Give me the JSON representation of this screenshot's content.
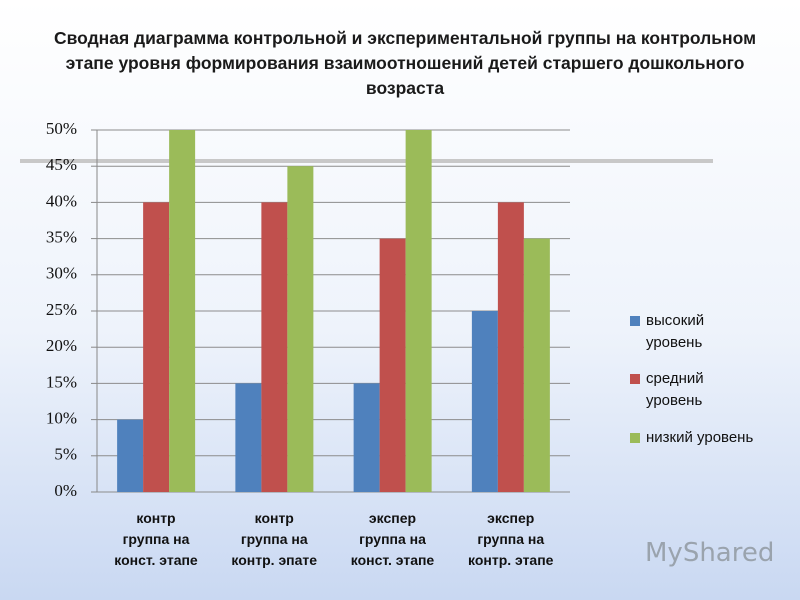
{
  "chart_data": {
    "type": "bar",
    "title": "Сводная диаграмма контрольной и экспериментальной группы на контрольном этапе уровня формирования взаимоотношений детей старшего дошкольного возраста",
    "categories": [
      "контр\nгруппа на\nконст. этапе",
      "контр\nгруппа на\nконтр. эпате",
      "экспер\nгруппа на\nконст. этапе",
      "экспер\nгруппа на\nконтр. этапе"
    ],
    "series": [
      {
        "name": "высокий уровень",
        "color": "#4f81bd",
        "values": [
          10,
          15,
          15,
          25
        ]
      },
      {
        "name": "средний уровень",
        "color": "#c0504d",
        "values": [
          40,
          40,
          35,
          40
        ]
      },
      {
        "name": "низкий уровень",
        "color": "#9bbb59",
        "values": [
          50,
          45,
          50,
          35
        ]
      }
    ],
    "ylim": [
      0,
      50
    ],
    "yticks": [
      {
        "value": 0,
        "label": "0%"
      },
      {
        "value": 5,
        "label": "5%"
      },
      {
        "value": 10,
        "label": "10%"
      },
      {
        "value": 15,
        "label": "15%"
      },
      {
        "value": 20,
        "label": "20%"
      },
      {
        "value": 25,
        "label": "25%"
      },
      {
        "value": 30,
        "label": "30%"
      },
      {
        "value": 35,
        "label": "35%"
      },
      {
        "value": 40,
        "label": "40%"
      },
      {
        "value": 45,
        "label": "45%"
      },
      {
        "value": 50,
        "label": "50%"
      }
    ],
    "grid": true,
    "legend": "right",
    "watermark": "MyShared"
  }
}
